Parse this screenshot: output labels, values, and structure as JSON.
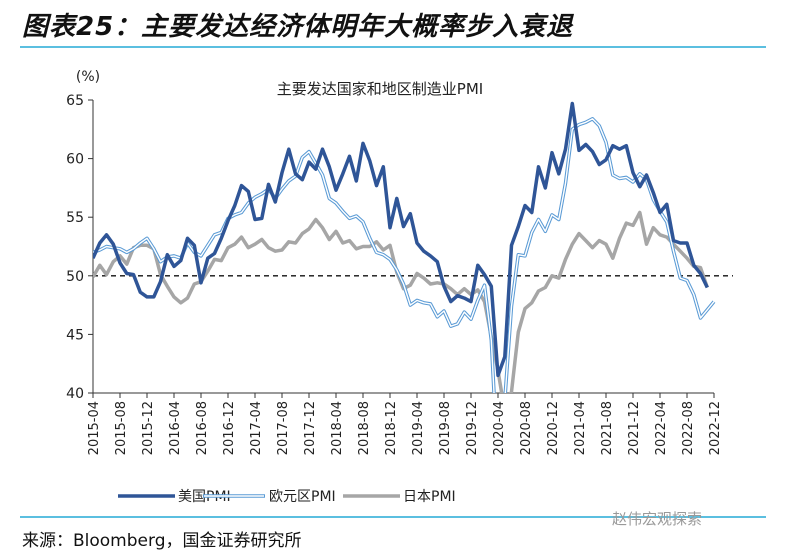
{
  "heading": "图表25：主要发达经济体明年大概率步入衰退",
  "source": "来源：Bloomberg，国金证券研究所",
  "watermark": "赵伟宏观探索",
  "chart_data": {
    "type": "line",
    "title": "主要发达国家和地区制造业PMI",
    "ylabel": "(%)",
    "ylim": [
      40,
      65
    ],
    "yticks": [
      40,
      45,
      50,
      55,
      60,
      65
    ],
    "reference_line": 50,
    "legend": "bottom",
    "grid": false,
    "start": "2015-04",
    "xticks": [
      "2015-04",
      "2015-08",
      "2015-12",
      "2016-04",
      "2016-08",
      "2016-12",
      "2017-04",
      "2017-08",
      "2017-12",
      "2018-04",
      "2018-08",
      "2018-12",
      "2019-04",
      "2019-08",
      "2019-12",
      "2020-04",
      "2020-08",
      "2020-12",
      "2021-04",
      "2021-08",
      "2021-12",
      "2022-04",
      "2022-08",
      "2022-12"
    ],
    "series": [
      {
        "name": "美国PMI",
        "color": "#2f5597",
        "values": [
          51.5,
          52.8,
          53.5,
          52.7,
          51.1,
          50.2,
          50.1,
          48.6,
          48.2,
          48.2,
          49.5,
          51.8,
          50.8,
          51.3,
          53.2,
          52.6,
          49.4,
          51.5,
          51.9,
          53.2,
          54.7,
          56.0,
          57.7,
          57.2,
          54.8,
          54.9,
          57.8,
          56.3,
          58.8,
          60.8,
          58.7,
          58.2,
          59.7,
          59.1,
          60.8,
          59.3,
          57.3,
          58.7,
          60.2,
          58.1,
          61.3,
          59.8,
          57.7,
          59.3,
          54.1,
          56.6,
          54.2,
          55.3,
          52.8,
          52.1,
          51.7,
          51.2,
          49.1,
          47.8,
          48.3,
          48.1,
          47.8,
          50.9,
          50.1,
          49.1,
          41.5,
          43.1,
          52.6,
          54.2,
          56.0,
          55.4,
          59.3,
          57.5,
          60.5,
          58.7,
          60.8,
          64.7,
          60.7,
          61.2,
          60.6,
          59.5,
          59.9,
          61.1,
          60.8,
          61.1,
          58.8,
          57.6,
          58.6,
          57.1,
          55.4,
          56.1,
          53.0,
          52.8,
          52.8,
          50.9,
          50.2,
          49.0
        ]
      },
      {
        "name": "欧元区PMI",
        "color": "#5b9bd5",
        "values": [
          52.0,
          52.2,
          52.5,
          52.4,
          52.3,
          52.0,
          52.3,
          52.8,
          53.2,
          52.3,
          51.2,
          51.6,
          51.7,
          51.5,
          52.8,
          52.0,
          51.7,
          52.6,
          53.5,
          53.7,
          54.9,
          55.2,
          55.4,
          56.2,
          56.7,
          57.0,
          57.4,
          56.6,
          57.4,
          58.1,
          58.5,
          60.1,
          60.6,
          59.6,
          58.6,
          56.6,
          56.2,
          55.5,
          54.9,
          55.1,
          54.6,
          53.2,
          52.0,
          51.8,
          51.4,
          50.5,
          49.3,
          47.5,
          47.9,
          47.7,
          47.6,
          46.5,
          47.0,
          45.7,
          45.9,
          46.9,
          46.3,
          47.9,
          49.2,
          44.5,
          33.4,
          39.4,
          47.4,
          51.8,
          51.7,
          53.7,
          54.8,
          53.8,
          55.2,
          54.8,
          57.9,
          62.5,
          62.9,
          63.1,
          63.4,
          62.8,
          61.4,
          58.6,
          58.3,
          58.4,
          58.0,
          58.7,
          58.2,
          56.5,
          55.5,
          54.6,
          52.1,
          49.8,
          49.6,
          48.4,
          46.4,
          47.1,
          47.8
        ]
      },
      {
        "name": "日本PMI",
        "color": "#a6a6a6",
        "values": [
          49.9,
          50.9,
          50.1,
          51.2,
          51.7,
          51.0,
          52.4,
          52.6,
          52.6,
          52.3,
          50.1,
          49.1,
          48.2,
          47.7,
          48.1,
          49.3,
          49.5,
          50.4,
          51.4,
          51.3,
          52.4,
          52.7,
          53.3,
          52.4,
          52.7,
          53.1,
          52.4,
          52.1,
          52.2,
          52.9,
          52.8,
          53.6,
          54.0,
          54.8,
          54.1,
          53.1,
          53.8,
          52.8,
          53.0,
          52.3,
          52.5,
          52.5,
          52.9,
          52.2,
          52.6,
          50.3,
          48.9,
          49.2,
          50.2,
          49.8,
          49.3,
          49.4,
          49.3,
          48.9,
          48.4,
          48.9,
          48.4,
          48.8,
          47.8,
          44.8,
          41.9,
          38.4,
          40.1,
          45.2,
          47.2,
          47.7,
          48.7,
          49.0,
          50.0,
          49.8,
          51.4,
          52.7,
          53.6,
          53.0,
          52.4,
          53.0,
          52.7,
          51.5,
          53.2,
          54.5,
          54.3,
          55.4,
          52.7,
          54.1,
          53.5,
          53.3,
          52.7,
          52.1,
          51.5,
          50.8,
          50.7,
          49.0
        ]
      }
    ]
  }
}
